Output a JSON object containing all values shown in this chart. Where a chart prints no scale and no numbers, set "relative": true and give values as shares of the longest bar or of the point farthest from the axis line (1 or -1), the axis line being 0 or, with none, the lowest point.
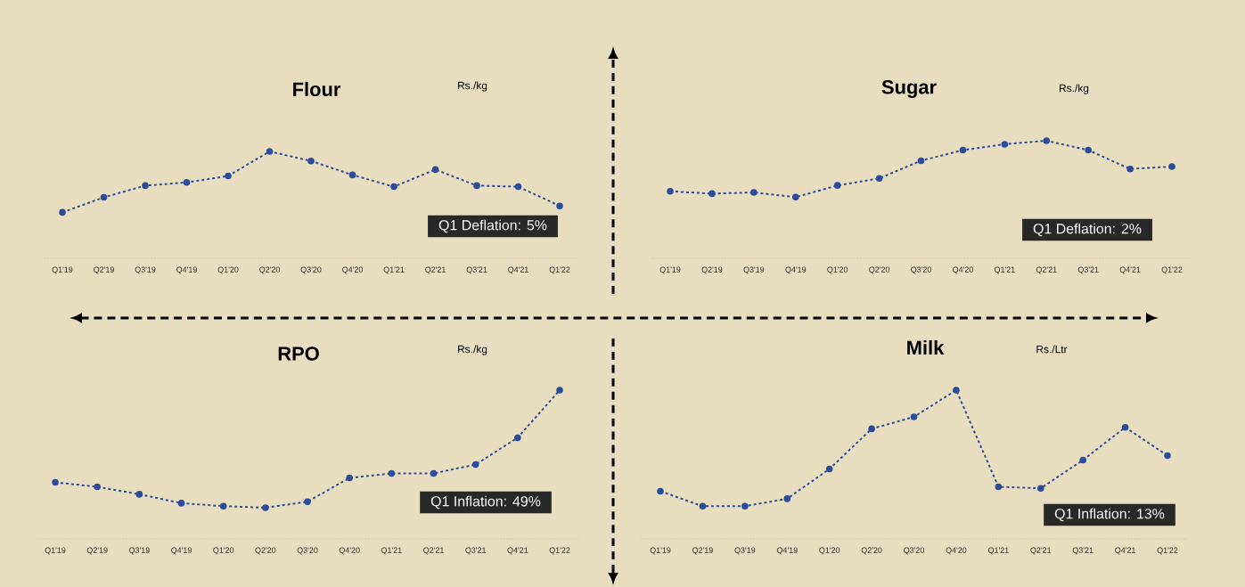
{
  "chart_data": [
    {
      "type": "line",
      "title": "Flour",
      "ylabel": "Rs./kg",
      "relative": true,
      "marker": "circle",
      "line_style": "dashed",
      "annotations": [
        "Q1 Deflation: 5%"
      ],
      "categories": [
        "Q1'19",
        "Q2'19",
        "Q3'19",
        "Q4'19",
        "Q1'20",
        "Q2'20",
        "Q3'20",
        "Q4'20",
        "Q1'21",
        "Q2'21",
        "Q3'21",
        "Q4'21",
        "Q1'22"
      ],
      "series": [
        {
          "color": "#2b4c9b",
          "values": [
            0.43,
            0.57,
            0.68,
            0.71,
            0.77,
            1,
            0.91,
            0.78,
            0.67,
            0.83,
            0.68,
            0.67,
            0.49
          ]
        }
      ]
    },
    {
      "type": "line",
      "title": "Sugar",
      "ylabel": "Rs./kg",
      "relative": true,
      "marker": "circle",
      "line_style": "dashed",
      "annotations": [
        "Q1 Deflation: 2%"
      ],
      "categories": [
        "Q1'19",
        "Q2'19",
        "Q3'19",
        "Q4'19",
        "Q1'20",
        "Q2'20",
        "Q3'20",
        "Q4'20",
        "Q1'21",
        "Q2'21",
        "Q3'21",
        "Q4'21",
        "Q1'22"
      ],
      "series": [
        {
          "color": "#2b4c9b",
          "values": [
            0.57,
            0.55,
            0.56,
            0.52,
            0.62,
            0.68,
            0.83,
            0.92,
            0.97,
            1,
            0.92,
            0.76,
            0.78
          ]
        }
      ]
    },
    {
      "type": "line",
      "title": "RPO",
      "ylabel": "Rs./kg",
      "relative": true,
      "marker": "circle",
      "line_style": "dashed",
      "annotations": [
        "Q1 Inflation: 49%"
      ],
      "categories": [
        "Q1'19",
        "Q2'19",
        "Q3'19",
        "Q4'19",
        "Q1'20",
        "Q2'20",
        "Q3'20",
        "Q4'20",
        "Q1'21",
        "Q2'21",
        "Q3'21",
        "Q4'21",
        "Q1'22"
      ],
      "series": [
        {
          "color": "#2b4c9b",
          "values": [
            0.38,
            0.35,
            0.3,
            0.24,
            0.22,
            0.21,
            0.25,
            0.41,
            0.44,
            0.44,
            0.5,
            0.68,
            1
          ]
        }
      ]
    },
    {
      "type": "line",
      "title": "Milk",
      "ylabel": "Rs./Ltr",
      "relative": true,
      "marker": "circle",
      "line_style": "dashed",
      "annotations": [
        "Q1 Inflation: 13%"
      ],
      "categories": [
        "Q1'19",
        "Q2'19",
        "Q3'19",
        "Q4'19",
        "Q1'20",
        "Q2'20",
        "Q3'20",
        "Q4'20",
        "Q1'21",
        "Q2'21",
        "Q3'21",
        "Q4'21",
        "Q1'22"
      ],
      "series": [
        {
          "color": "#2b4c9b",
          "values": [
            0.32,
            0.22,
            0.22,
            0.27,
            0.47,
            0.74,
            0.82,
            1,
            0.35,
            0.34,
            0.53,
            0.75,
            0.56
          ]
        }
      ]
    }
  ]
}
